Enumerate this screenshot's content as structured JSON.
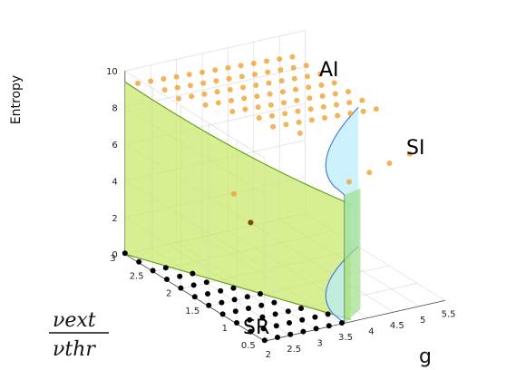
{
  "chart_data": {
    "type": "scatter3d",
    "zlabel": "Entropy",
    "xlabel": "g",
    "ylabel_numerator": "νext",
    "ylabel_denominator": "νthr",
    "x_ticks": [
      "2",
      "2.5",
      "3",
      "3.5",
      "4",
      "4.5",
      "5",
      "5.5"
    ],
    "y_ticks": [
      "0.5",
      "1",
      "1.5",
      "2",
      "2.5",
      "3"
    ],
    "z_ticks": [
      "0",
      "2",
      "4",
      "6",
      "8",
      "10"
    ],
    "xlim": [
      2,
      5.5
    ],
    "ylim": [
      0.5,
      3
    ],
    "zlim": [
      0,
      10
    ],
    "regions": [
      {
        "name": "SR",
        "color": "#c8e86a"
      },
      {
        "name": "AI",
        "color": "#f5b04a"
      },
      {
        "name": "SI",
        "color": "#a8e4f8"
      }
    ],
    "colors": {
      "low_entropy": "#000000",
      "mid_entropy": "#7a4a10",
      "high_entropy": "#f0a030",
      "sr_surface": "#c8e86a",
      "si_surface": "#b8ecfc"
    }
  },
  "region_labels": {
    "sr": "SR",
    "ai": "AI",
    "si": "SI"
  }
}
